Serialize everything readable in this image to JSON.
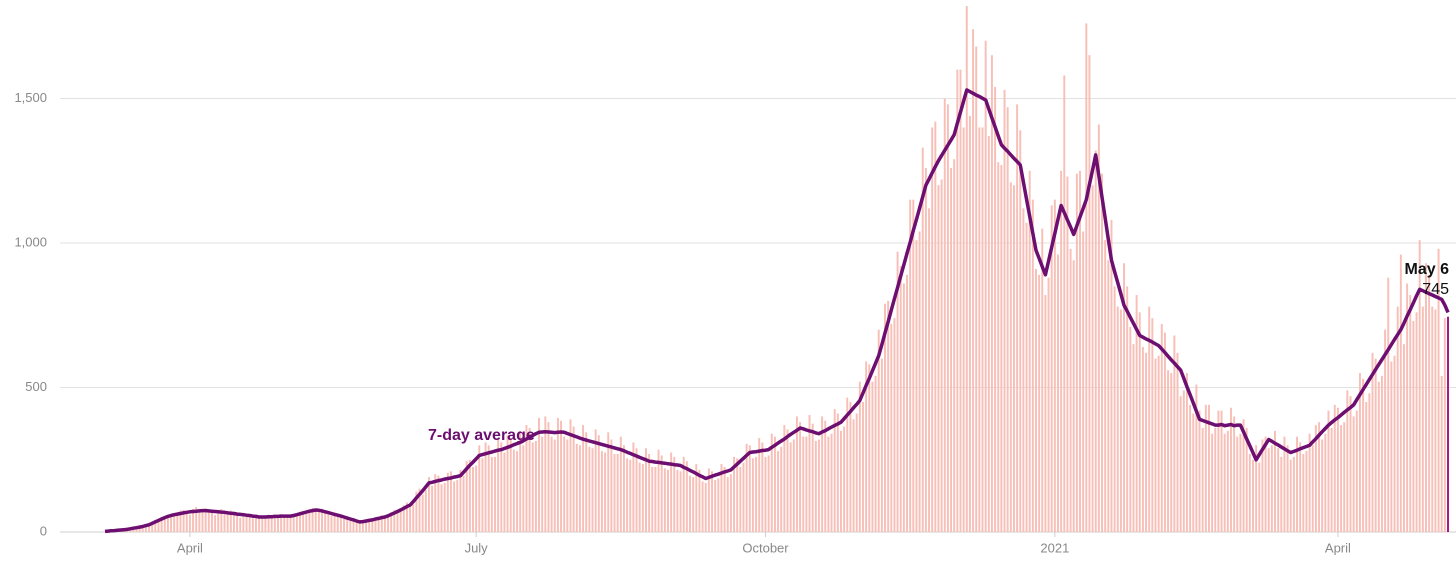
{
  "chart_data": {
    "type": "bar",
    "ylim": [
      0,
      1841
    ],
    "yticks": [
      0,
      500,
      {
        "value": 1000,
        "label": "1,000"
      },
      {
        "value": 1500,
        "label": "1,500"
      }
    ],
    "xlim": [
      0,
      427
    ],
    "xticks": [
      {
        "value": 27,
        "label": "April"
      },
      {
        "value": 118,
        "label": "July"
      },
      {
        "value": 210,
        "label": "October"
      },
      {
        "value": 302,
        "label": "2021"
      },
      {
        "value": 392,
        "label": "April"
      }
    ],
    "grid": true,
    "annotation": "May 6",
    "series": [
      {
        "type": "bar",
        "color": "#f7bfb7",
        "last_color": "#a0177f",
        "values": [
          2,
          3,
          5,
          5,
          5,
          8,
          9,
          8,
          12,
          15,
          14,
          16,
          22,
          20,
          24,
          32,
          42,
          44,
          40,
          45,
          58,
          62,
          55,
          58,
          74,
          76,
          64,
          60,
          80,
          86,
          72,
          70,
          82,
          78,
          66,
          58,
          76,
          80,
          62,
          60,
          74,
          70,
          56,
          50,
          66,
          62,
          55,
          48,
          60,
          54,
          48,
          52,
          60,
          58,
          50,
          56,
          62,
          54,
          50,
          58,
          56,
          64,
          70,
          72,
          62,
          70,
          84,
          80,
          70,
          80,
          74,
          62,
          56,
          68,
          62,
          50,
          46,
          56,
          50,
          38,
          34,
          40,
          36,
          42,
          46,
          38,
          40,
          52,
          58,
          48,
          52,
          68,
          76,
          66,
          70,
          92,
          102,
          86,
          96,
          140,
          150,
          130,
          145,
          190,
          160,
          200,
          195,
          165,
          170,
          205,
          210,
          175,
          180,
          215,
          195,
          245,
          250,
          225,
          230,
          300,
          255,
          310,
          300,
          260,
          260,
          320,
          310,
          275,
          335,
          320,
          285,
          280,
          350,
          300,
          370,
          360,
          310,
          315,
          395,
          330,
          400,
          380,
          330,
          320,
          395,
          385,
          330,
          320,
          390,
          365,
          305,
          300,
          370,
          345,
          295,
          290,
          355,
          335,
          280,
          275,
          345,
          320,
          270,
          270,
          330,
          300,
          255,
          250,
          310,
          290,
          240,
          235,
          290,
          270,
          225,
          225,
          285,
          265,
          220,
          215,
          275,
          260,
          215,
          210,
          260,
          245,
          195,
          190,
          235,
          215,
          175,
          170,
          220,
          210,
          180,
          185,
          235,
          225,
          190,
          200,
          260,
          255,
          225,
          240,
          305,
          300,
          255,
          260,
          325,
          310,
          260,
          265,
          340,
          330,
          280,
          295,
          370,
          355,
          310,
          320,
          400,
          380,
          330,
          330,
          405,
          375,
          315,
          320,
          400,
          385,
          330,
          340,
          425,
          410,
          350,
          365,
          465,
          450,
          390,
          410,
          520,
          450,
          590,
          580,
          520,
          540,
          700,
          600,
          790,
          800,
          720,
          740,
          970,
          920,
          860,
          890,
          1150,
          1150,
          1010,
          1040,
          1330,
          1260,
          1120,
          1400,
          1420,
          1200,
          1220,
          1500,
          1480,
          1260,
          1290,
          1600,
          1600,
          1400,
          1820,
          1440,
          1740,
          1680,
          1400,
          1400,
          1700,
          1370,
          1650,
          1540,
          1280,
          1270,
          1530,
          1470,
          1210,
          1200,
          1480,
          1390,
          1120,
          1070,
          1250,
          1150,
          910,
          890,
          1050,
          820,
          880,
          1130,
          1150,
          960,
          1250,
          1580,
          1230,
          980,
          940,
          1240,
          1250,
          1040,
          1760,
          1650,
          1200,
          1320,
          1410,
          1240,
          1010,
          940,
          1080,
          850,
          780,
          770,
          930,
          850,
          710,
          650,
          820,
          760,
          640,
          620,
          780,
          740,
          600,
          610,
          720,
          690,
          560,
          550,
          680,
          620,
          470,
          490,
          550,
          440,
          410,
          510,
          420,
          360,
          440,
          440,
          340,
          360,
          420,
          420,
          340,
          350,
          430,
          400,
          330,
          340,
          390,
          360,
          270,
          250,
          300,
          240,
          320,
          330,
          290,
          300,
          350,
          290,
          260,
          330,
          300,
          250,
          260,
          330,
          310,
          270,
          280,
          340,
          300,
          370,
          380,
          320,
          340,
          420,
          360,
          440,
          430,
          370,
          380,
          490,
          470,
          400,
          420,
          550,
          530,
          450,
          480,
          620,
          600,
          520,
          540,
          700,
          880,
          590,
          610,
          780,
          960,
          650,
          860,
          820,
          730,
          760,
          1010,
          780,
          930,
          890,
          780,
          770,
          980,
          540,
          740,
          745
        ]
      },
      {
        "type": "line",
        "name": "7-day average",
        "color": "#6c0f70",
        "values": [
          2,
          3,
          4,
          5,
          6,
          7,
          8,
          9,
          11,
          13,
          15,
          17,
          19,
          22,
          25,
          30,
          35,
          40,
          45,
          50,
          54,
          57,
          60,
          62,
          64,
          66,
          68,
          70,
          71,
          72,
          73,
          74,
          74,
          73,
          72,
          71,
          70,
          69,
          68,
          66,
          65,
          64,
          62,
          61,
          60,
          58,
          57,
          55,
          54,
          52,
          52,
          52,
          53,
          53,
          54,
          54,
          55,
          55,
          55,
          55,
          57,
          60,
          63,
          66,
          69,
          72,
          74,
          76,
          75,
          73,
          70,
          67,
          64,
          61,
          58,
          55,
          52,
          48,
          45,
          42,
          38,
          35,
          36,
          38,
          40,
          42,
          45,
          47,
          50,
          52,
          56,
          61,
          66,
          71,
          76,
          82,
          88,
          93,
          105,
          118,
          130,
          143,
          156,
          170,
          172,
          175,
          178,
          180,
          183,
          185,
          187,
          190,
          192,
          195,
          207,
          219,
          231,
          242,
          253,
          265,
          268,
          271,
          274,
          277,
          280,
          283,
          285,
          289,
          293,
          297,
          302,
          306,
          310,
          316,
          322,
          328,
          334,
          340,
          345,
          346,
          347,
          346,
          345,
          344,
          345,
          346,
          345,
          341,
          337,
          333,
          329,
          325,
          321,
          318,
          315,
          312,
          309,
          306,
          303,
          300,
          297,
          294,
          291,
          288,
          285,
          281,
          276,
          272,
          267,
          263,
          258,
          254,
          250,
          245,
          244,
          242,
          241,
          239,
          238,
          236,
          235,
          233,
          232,
          230,
          224,
          219,
          213,
          208,
          202,
          196,
          191,
          185,
          189,
          193,
          197,
          200,
          204,
          208,
          211,
          215,
          225,
          235,
          245,
          255,
          265,
          275,
          277,
          278,
          280,
          282,
          283,
          285,
          293,
          300,
          308,
          315,
          322,
          330,
          338,
          345,
          352,
          360,
          357,
          353,
          350,
          347,
          343,
          340,
          346,
          351,
          357,
          363,
          369,
          374,
          380,
          392,
          405,
          417,
          430,
          442,
          455,
          481,
          507,
          532,
          558,
          584,
          610,
          649,
          689,
          728,
          768,
          807,
          846,
          886,
          925,
          964,
          1003,
          1043,
          1082,
          1121,
          1161,
          1200,
          1221,
          1243,
          1264,
          1285,
          1303,
          1321,
          1339,
          1357,
          1375,
          1414,
          1453,
          1491,
          1530,
          1524,
          1518,
          1512,
          1507,
          1501,
          1495,
          1464,
          1433,
          1402,
          1371,
          1340,
          1328,
          1317,
          1305,
          1293,
          1282,
          1270,
          1211,
          1152,
          1093,
          1034,
          975,
          947,
          918,
          890,
          938,
          986,
          1034,
          1082,
          1130,
          1105,
          1080,
          1055,
          1030,
          1060,
          1090,
          1120,
          1150,
          1202,
          1253,
          1305,
          1232,
          1159,
          1086,
          1013,
          940,
          901,
          862,
          824,
          785,
          764,
          743,
          722,
          701,
          680,
          674,
          668,
          663,
          657,
          651,
          645,
          633,
          621,
          608,
          596,
          584,
          572,
          560,
          532,
          503,
          475,
          447,
          418,
          390,
          386,
          382,
          378,
          374,
          370,
          370,
          372,
          368,
          370,
          372,
          368,
          370,
          370,
          346,
          322,
          298,
          274,
          250,
          268,
          285,
          303,
          320,
          314,
          307,
          301,
          294,
          288,
          281,
          275,
          279,
          283,
          288,
          292,
          296,
          300,
          312,
          323,
          335,
          347,
          358,
          370,
          379,
          388,
          396,
          405,
          414,
          423,
          431,
          440,
          458,
          475,
          493,
          510,
          528,
          545,
          563,
          580,
          597,
          614,
          631,
          649,
          666,
          683,
          700,
          723,
          747,
          770,
          793,
          817,
          840,
          835,
          830,
          825,
          820,
          815,
          810,
          805,
          785,
          760
        ]
      }
    ]
  }
}
